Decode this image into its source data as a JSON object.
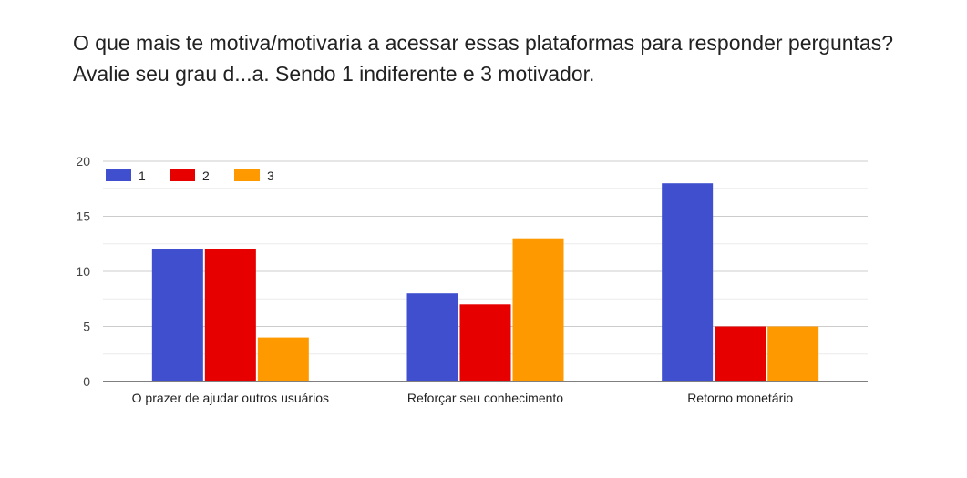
{
  "chart_data": {
    "type": "bar",
    "title": "O que mais te motiva/motivaria a acessar essas plataformas para responder perguntas? Avalie seu grau d...a. Sendo 1 indiferente e 3 motivador.",
    "categories": [
      "O prazer de ajudar outros usuários",
      "Reforçar seu conhecimento",
      "Retorno monetário"
    ],
    "series": [
      {
        "name": "1",
        "values": [
          12,
          8,
          18
        ],
        "color": "#3f4fce"
      },
      {
        "name": "2",
        "values": [
          12,
          7,
          5
        ],
        "color": "#e60000"
      },
      {
        "name": "3",
        "values": [
          4,
          13,
          5
        ],
        "color": "#ff9900"
      }
    ],
    "ylim": [
      0,
      20
    ],
    "yticks": [
      0,
      5,
      10,
      15,
      20
    ],
    "grid": true,
    "legend_position": "top-left",
    "xlabel": "",
    "ylabel": ""
  }
}
